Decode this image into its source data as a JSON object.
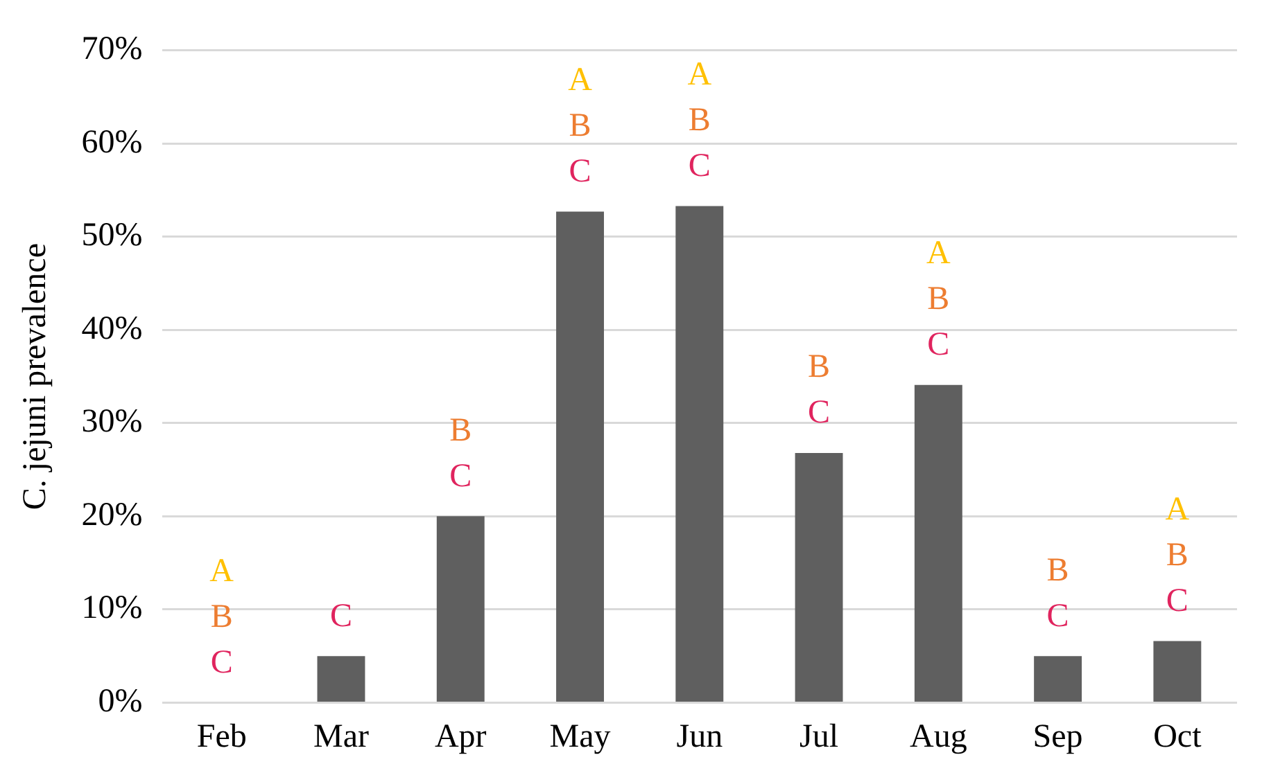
{
  "chart_data": {
    "type": "bar",
    "ylabel": "C. jejuni prevalence",
    "categories": [
      "Feb",
      "Mar",
      "Apr",
      "May",
      "Jun",
      "Jul",
      "Aug",
      "Sep",
      "Oct"
    ],
    "values": [
      0,
      5.0,
      20.0,
      52.7,
      53.3,
      26.8,
      34.1,
      5.0,
      6.6
    ],
    "color": "#5f5f5f",
    "ylim": [
      0,
      70
    ],
    "yticks": [
      {
        "value": 0,
        "label": "0%"
      },
      {
        "value": 10,
        "label": "10%"
      },
      {
        "value": 20,
        "label": "20%"
      },
      {
        "value": 30,
        "label": "30%"
      },
      {
        "value": 40,
        "label": "40%"
      },
      {
        "value": 50,
        "label": "50%"
      },
      {
        "value": 60,
        "label": "60%"
      },
      {
        "value": 70,
        "label": "70%"
      }
    ],
    "grid": "y",
    "annotations": [
      {
        "text": "A\nB\nC",
        "x": "Feb",
        "y": 0
      },
      {
        "text": "C",
        "x": "Mar",
        "y": 5.0
      },
      {
        "text": "B\nC",
        "x": "Apr",
        "y": 20.0
      },
      {
        "text": "A\nB\nC",
        "x": "May",
        "y": 52.7
      },
      {
        "text": "A\nB\nC",
        "x": "Jun",
        "y": 53.3
      },
      {
        "text": "B\nC",
        "x": "Jul",
        "y": 26.8
      },
      {
        "text": "A\nB\nC",
        "x": "Aug",
        "y": 34.1
      },
      {
        "text": "B\nC",
        "x": "Sep",
        "y": 5.0
      },
      {
        "text": "A\nB\nC",
        "x": "Oct",
        "y": 6.6
      }
    ]
  }
}
